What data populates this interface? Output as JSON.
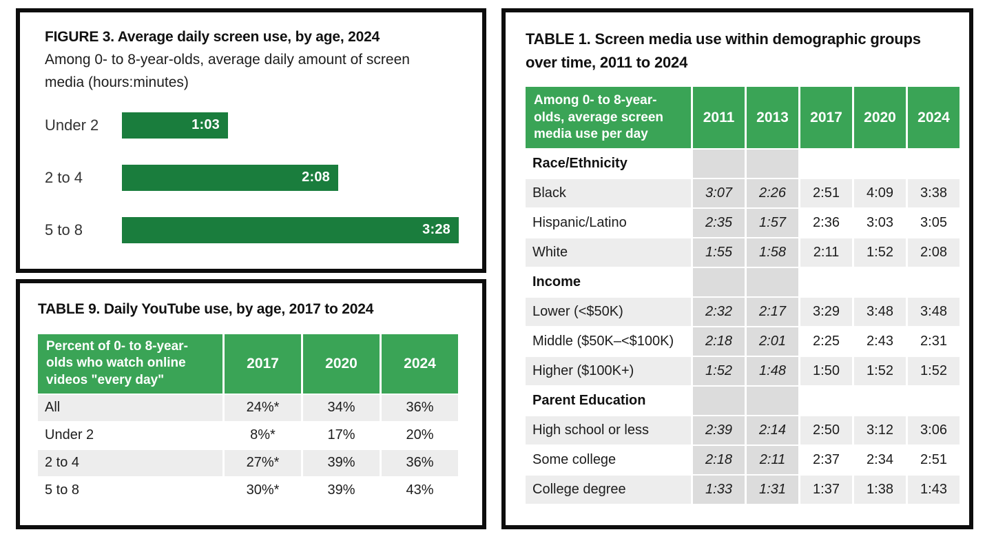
{
  "colors": {
    "bar_green": "#1a7d3d",
    "header_green": "#3aa456",
    "stripe_light": "#ededed",
    "stripe_dark": "#dcdcdc",
    "panel_border": "#0d0d0d",
    "text_dark": "#1f1f1f"
  },
  "chart_data": [
    {
      "type": "bar",
      "panel": "figure3",
      "title": "FIGURE 3. Average daily screen use, by age, 2024",
      "subtitle": "Among 0- to 8-year-olds, average daily amount of screen media (hours:minutes)",
      "orientation": "horizontal",
      "categories": [
        "Under 2",
        "2 to 4",
        "5 to 8"
      ],
      "values_minutes": [
        63,
        128,
        208
      ],
      "value_labels": [
        "1:03",
        "2:08",
        "3:28"
      ],
      "xlim_minutes": [
        0,
        215
      ],
      "value_label_position": "inside-right",
      "grid": "off",
      "legend": "none"
    },
    {
      "type": "table",
      "panel": "table9",
      "title": "TABLE 9. Daily YouTube use, by age, 2017 to 2024",
      "header_label": "Percent of 0- to 8-year-olds who watch online videos \"every day\"",
      "columns": [
        "2017",
        "2020",
        "2024"
      ],
      "italic_columns": [],
      "rows": [
        {
          "label": "All",
          "values": [
            "24%*",
            "34%",
            "36%"
          ]
        },
        {
          "label": "Under 2",
          "values": [
            "8%*",
            "17%",
            "20%"
          ]
        },
        {
          "label": "2 to 4",
          "values": [
            "27%*",
            "39%",
            "36%"
          ]
        },
        {
          "label": "5 to 8",
          "values": [
            "30%*",
            "39%",
            "43%"
          ]
        }
      ]
    },
    {
      "type": "table",
      "panel": "table1",
      "title": "TABLE 1. Screen media use within demographic groups over time, 2011 to 2024",
      "header_label": "Among 0- to 8-year-olds, average screen media use per day",
      "columns": [
        "2011",
        "2013",
        "2017",
        "2020",
        "2024"
      ],
      "italic_columns": [
        "2011",
        "2013"
      ],
      "rows": [
        {
          "label": "Race/Ethnicity",
          "section": true,
          "values": [
            "",
            "",
            "",
            "",
            ""
          ]
        },
        {
          "label": "Black",
          "values": [
            "3:07",
            "2:26",
            "2:51",
            "4:09",
            "3:38"
          ]
        },
        {
          "label": "Hispanic/Latino",
          "values": [
            "2:35",
            "1:57",
            "2:36",
            "3:03",
            "3:05"
          ]
        },
        {
          "label": "White",
          "values": [
            "1:55",
            "1:58",
            "2:11",
            "1:52",
            "2:08"
          ]
        },
        {
          "label": "Income",
          "section": true,
          "values": [
            "",
            "",
            "",
            "",
            ""
          ]
        },
        {
          "label": "Lower (<$50K)",
          "values": [
            "2:32",
            "2:17",
            "3:29",
            "3:48",
            "3:48"
          ]
        },
        {
          "label": "Middle ($50K–<$100K)",
          "values": [
            "2:18",
            "2:01",
            "2:25",
            "2:43",
            "2:31"
          ]
        },
        {
          "label": "Higher ($100K+)",
          "values": [
            "1:52",
            "1:48",
            "1:50",
            "1:52",
            "1:52"
          ]
        },
        {
          "label": "Parent Education",
          "section": true,
          "values": [
            "",
            "",
            "",
            "",
            ""
          ]
        },
        {
          "label": "High school or less",
          "values": [
            "2:39",
            "2:14",
            "2:50",
            "3:12",
            "3:06"
          ]
        },
        {
          "label": "Some college",
          "values": [
            "2:18",
            "2:11",
            "2:37",
            "2:34",
            "2:51"
          ]
        },
        {
          "label": "College degree",
          "values": [
            "1:33",
            "1:31",
            "1:37",
            "1:38",
            "1:43"
          ]
        }
      ]
    }
  ]
}
